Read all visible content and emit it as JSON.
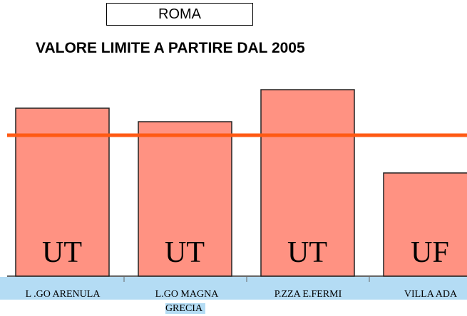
{
  "chart_data": {
    "type": "bar",
    "subtitle": "ROMA",
    "title": "VALORE LIMITE A PARTIRE DAL 2005",
    "categories": [
      "L .GO ARENULA",
      "L.GO MAGNA\nGRECIA",
      "P.ZZA E.FERMI",
      "VILLA ADA"
    ],
    "values": [
      236,
      217,
      262,
      145
    ],
    "bar_labels": [
      "UT",
      "UT",
      "UT",
      "UF"
    ],
    "limit": 198,
    "color": "#ff9282",
    "limit_color": "#ff5a14",
    "ylim": [
      0,
      270
    ]
  }
}
